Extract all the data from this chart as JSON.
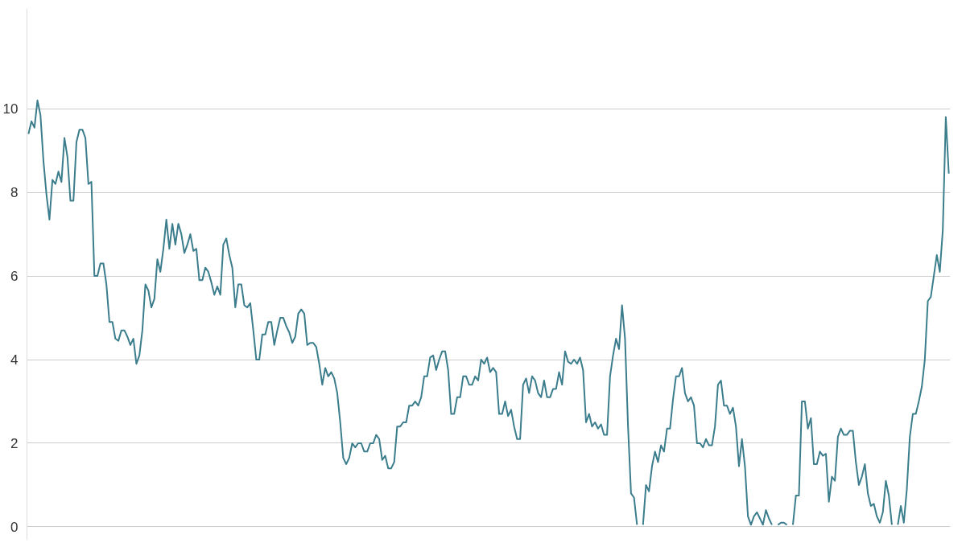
{
  "chart_data": {
    "type": "line",
    "tick_labels": "y",
    "grid": "y",
    "marker": "none",
    "line_style": "solid",
    "categories": [
      null,
      null,
      null,
      null,
      null,
      null,
      null,
      null,
      null,
      null,
      null,
      null,
      null,
      null,
      null,
      null,
      null,
      null,
      null,
      null,
      null,
      null,
      null,
      null,
      null,
      null,
      null,
      null,
      null,
      null,
      null,
      null,
      null,
      null,
      null,
      null,
      null,
      null,
      null,
      null,
      null,
      null,
      null,
      null,
      null,
      null,
      null,
      null,
      null,
      null,
      null,
      null,
      null,
      null,
      null,
      null,
      null,
      null,
      null,
      null,
      null,
      null,
      null,
      null,
      null,
      null,
      null,
      null,
      null,
      null,
      null,
      null,
      null,
      null,
      null,
      null,
      null,
      null,
      null,
      null,
      null,
      null,
      null,
      null,
      null,
      null,
      null,
      null,
      null,
      null,
      null,
      null,
      null,
      null,
      null,
      null,
      null,
      null,
      null,
      null,
      null,
      null,
      null,
      null,
      null,
      null,
      null,
      null,
      null,
      null,
      null,
      null,
      null,
      null,
      null,
      null,
      null,
      null,
      null,
      null,
      null,
      null,
      null,
      null,
      null,
      null,
      null,
      null,
      null,
      null,
      null,
      null,
      null,
      null,
      null,
      null,
      null,
      null,
      null,
      null,
      null,
      null,
      null,
      null,
      null,
      null,
      null,
      null,
      null,
      null,
      null,
      null,
      null,
      null,
      null,
      null,
      null,
      null,
      null,
      null,
      null,
      null,
      null,
      null,
      null,
      null,
      null,
      null,
      null,
      null,
      null,
      null,
      null,
      null,
      null,
      null,
      null,
      null,
      null,
      null,
      null,
      null,
      null,
      null,
      null,
      null,
      null,
      null,
      null,
      null,
      null,
      null,
      null,
      null,
      null,
      null,
      null,
      null,
      null,
      null,
      null,
      null,
      null,
      null,
      null,
      null,
      null,
      null,
      null,
      null,
      null,
      null,
      null,
      null,
      null,
      null,
      null,
      null,
      null,
      null,
      null,
      null,
      null,
      null,
      null,
      null,
      null,
      null,
      null,
      null,
      null,
      null,
      null,
      null,
      null,
      null,
      null,
      null,
      null,
      null,
      null,
      null,
      null,
      null,
      null,
      null,
      null,
      null,
      null,
      null,
      null,
      null,
      null,
      null,
      null,
      null,
      null,
      null,
      null,
      null,
      null,
      null,
      null,
      null,
      null,
      null,
      null,
      null,
      null,
      null,
      null,
      null,
      null,
      null,
      null,
      null,
      null,
      null,
      null,
      null,
      null,
      null,
      null,
      null,
      null,
      null,
      null,
      null,
      null,
      null,
      null,
      null,
      null,
      null,
      null,
      null,
      null,
      null,
      null,
      null,
      null,
      null,
      null,
      null,
      null,
      null,
      null,
      null
    ],
    "ylim": [
      -0.3,
      12.4
    ],
    "yticks": [
      0,
      2,
      4,
      6,
      8,
      10
    ],
    "series": [
      {
        "color": "#3b7d8c",
        "values": [
          9.4,
          9.7,
          9.55,
          10.2,
          9.85,
          8.75,
          7.95,
          7.35,
          8.3,
          8.2,
          8.5,
          8.25,
          9.3,
          8.85,
          7.8,
          7.8,
          9.2,
          9.5,
          9.5,
          9.3,
          8.2,
          8.25,
          6.0,
          6.0,
          6.3,
          6.3,
          5.8,
          4.9,
          4.9,
          4.5,
          4.45,
          4.7,
          4.7,
          4.55,
          4.35,
          4.5,
          3.9,
          4.1,
          4.7,
          5.8,
          5.65,
          5.25,
          5.45,
          6.4,
          6.1,
          6.65,
          7.35,
          6.65,
          7.25,
          6.75,
          7.25,
          7.0,
          6.55,
          6.75,
          7.0,
          6.6,
          6.65,
          5.9,
          5.9,
          6.2,
          6.1,
          5.85,
          5.55,
          5.75,
          5.55,
          6.75,
          6.9,
          6.5,
          6.2,
          5.25,
          5.8,
          5.8,
          5.3,
          5.25,
          5.35,
          4.7,
          4.0,
          4.0,
          4.6,
          4.6,
          4.9,
          4.9,
          4.35,
          4.7,
          5.0,
          5.0,
          4.8,
          4.65,
          4.4,
          4.55,
          5.1,
          5.2,
          5.1,
          4.35,
          4.4,
          4.4,
          4.3,
          3.9,
          3.4,
          3.8,
          3.6,
          3.7,
          3.55,
          3.2,
          2.5,
          1.65,
          1.5,
          1.65,
          2.0,
          1.9,
          2.0,
          2.0,
          1.8,
          1.8,
          2.0,
          2.0,
          2.2,
          2.1,
          1.6,
          1.7,
          1.4,
          1.4,
          1.55,
          2.4,
          2.4,
          2.5,
          2.5,
          2.9,
          2.9,
          3.0,
          2.9,
          3.1,
          3.6,
          3.6,
          4.05,
          4.1,
          3.75,
          4.0,
          4.2,
          4.2,
          3.75,
          2.7,
          2.7,
          3.1,
          3.1,
          3.6,
          3.6,
          3.4,
          3.4,
          3.6,
          3.5,
          4.0,
          3.9,
          4.05,
          3.7,
          3.8,
          3.7,
          2.7,
          2.7,
          3.0,
          2.65,
          2.8,
          2.4,
          2.1,
          2.1,
          3.4,
          3.55,
          3.2,
          3.6,
          3.5,
          3.2,
          3.1,
          3.5,
          3.1,
          3.1,
          3.3,
          3.3,
          3.7,
          3.4,
          4.2,
          3.95,
          3.9,
          4.0,
          3.9,
          4.05,
          3.75,
          2.5,
          2.7,
          2.4,
          2.5,
          2.35,
          2.45,
          2.2,
          2.2,
          3.6,
          4.1,
          4.5,
          4.25,
          5.3,
          4.5,
          2.4,
          0.8,
          0.7,
          0.05,
          null,
          null,
          null,
          null,
          null,
          null,
          null,
          null,
          null,
          null,
          null,
          null,
          null,
          null,
          null,
          null,
          null,
          null,
          null,
          null,
          null,
          null,
          null,
          null,
          null,
          null,
          null,
          null,
          null,
          null,
          null,
          null,
          null,
          null,
          null,
          null,
          null,
          null,
          null,
          null,
          null,
          null,
          null,
          null,
          null,
          null,
          null,
          null,
          null,
          null,
          null,
          null,
          null,
          null,
          null,
          null,
          null,
          null,
          null,
          null,
          null,
          null,
          null,
          null,
          null,
          null,
          null,
          null,
          null,
          null,
          null,
          null,
          null,
          null,
          null,
          null,
          null,
          null,
          null,
          null,
          null,
          null,
          null,
          null,
          null,
          null,
          null,
          null,
          null,
          null,
          null,
          null,
          null,
          null,
          null,
          null,
          null,
          null,
          null,
          null,
          null,
          null,
          null,
          null
        ]
      },
      {
        "color": "#3b7d8d",
        "values": [
          null,
          null,
          null,
          null,
          null,
          null,
          null,
          null,
          null,
          null,
          null,
          null,
          null,
          null,
          null,
          null,
          null,
          null,
          null,
          null,
          null,
          null,
          null,
          null,
          null,
          null,
          null,
          null,
          null,
          null,
          null,
          null,
          null,
          null,
          null,
          null,
          null,
          null,
          null,
          null,
          null,
          null,
          null,
          null,
          null,
          null,
          null,
          null,
          null,
          null,
          null,
          null,
          null,
          null,
          null,
          null,
          null,
          null,
          null,
          null,
          null,
          null,
          null,
          null,
          null,
          null,
          null,
          null,
          null,
          null,
          null,
          null,
          null,
          null,
          null,
          null,
          null,
          null,
          null,
          null,
          null,
          null,
          null,
          null,
          null,
          null,
          null,
          null,
          null,
          null,
          null,
          null,
          null,
          null,
          null,
          null,
          null,
          null,
          null,
          null,
          null,
          null,
          null,
          null,
          null,
          null,
          null,
          null,
          null,
          null,
          null,
          null,
          null,
          null,
          null,
          null,
          null,
          null,
          null,
          null,
          null,
          null,
          null,
          null,
          null,
          null,
          null,
          null,
          null,
          null,
          null,
          null,
          null,
          null,
          null,
          null,
          null,
          null,
          null,
          null,
          null,
          null,
          null,
          null,
          null,
          null,
          null,
          null,
          null,
          null,
          null,
          null,
          null,
          null,
          null,
          null,
          null,
          null,
          null,
          null,
          null,
          null,
          null,
          null,
          null,
          null,
          null,
          null,
          null,
          null,
          null,
          null,
          null,
          null,
          null,
          null,
          null,
          null,
          null,
          null,
          null,
          null,
          null,
          null,
          null,
          null,
          null,
          null,
          null,
          null,
          null,
          null,
          null,
          null,
          null,
          null,
          null,
          null,
          null,
          null,
          null,
          null,
          null,
          null,
          null,
          0.05,
          1.0,
          0.85,
          1.45,
          1.8,
          1.55,
          1.95,
          1.8,
          2.35,
          2.35,
          3.05,
          3.6,
          3.6,
          3.8,
          3.2,
          3.0,
          3.1,
          2.9,
          2.0,
          2.0,
          1.9,
          2.1,
          1.95,
          1.95,
          2.4,
          3.4,
          3.5,
          2.9,
          2.9,
          2.7,
          2.85,
          2.4,
          1.45,
          2.1,
          1.45,
          0.25,
          0.05,
          0.25,
          0.35,
          0.2,
          0.05,
          0.4,
          0.2,
          0.05,
          null,
          null,
          null,
          null,
          null,
          null,
          null,
          null,
          null,
          null,
          null,
          null,
          null,
          null,
          null,
          null,
          null,
          null,
          null,
          null,
          null,
          null,
          null,
          null,
          null,
          null,
          null,
          null,
          null,
          null,
          null,
          null,
          null,
          null,
          null,
          null,
          null,
          null,
          null,
          null,
          null,
          null,
          null,
          null,
          null,
          null,
          null,
          null,
          null,
          null,
          null,
          null,
          null,
          null,
          null,
          null,
          null,
          null,
          null
        ]
      },
      {
        "color": "#3b7d8e",
        "values": [
          null,
          null,
          null,
          null,
          null,
          null,
          null,
          null,
          null,
          null,
          null,
          null,
          null,
          null,
          null,
          null,
          null,
          null,
          null,
          null,
          null,
          null,
          null,
          null,
          null,
          null,
          null,
          null,
          null,
          null,
          null,
          null,
          null,
          null,
          null,
          null,
          null,
          null,
          null,
          null,
          null,
          null,
          null,
          null,
          null,
          null,
          null,
          null,
          null,
          null,
          null,
          null,
          null,
          null,
          null,
          null,
          null,
          null,
          null,
          null,
          null,
          null,
          null,
          null,
          null,
          null,
          null,
          null,
          null,
          null,
          null,
          null,
          null,
          null,
          null,
          null,
          null,
          null,
          null,
          null,
          null,
          null,
          null,
          null,
          null,
          null,
          null,
          null,
          null,
          null,
          null,
          null,
          null,
          null,
          null,
          null,
          null,
          null,
          null,
          null,
          null,
          null,
          null,
          null,
          null,
          null,
          null,
          null,
          null,
          null,
          null,
          null,
          null,
          null,
          null,
          null,
          null,
          null,
          null,
          null,
          null,
          null,
          null,
          null,
          null,
          null,
          null,
          null,
          null,
          null,
          null,
          null,
          null,
          null,
          null,
          null,
          null,
          null,
          null,
          null,
          null,
          null,
          null,
          null,
          null,
          null,
          null,
          null,
          null,
          null,
          null,
          null,
          null,
          null,
          null,
          null,
          null,
          null,
          null,
          null,
          null,
          null,
          null,
          null,
          null,
          null,
          null,
          null,
          null,
          null,
          null,
          null,
          null,
          null,
          null,
          null,
          null,
          null,
          null,
          null,
          null,
          null,
          null,
          null,
          null,
          null,
          null,
          null,
          null,
          null,
          null,
          null,
          null,
          null,
          null,
          null,
          null,
          null,
          null,
          null,
          null,
          null,
          null,
          null,
          null,
          null,
          null,
          null,
          null,
          null,
          null,
          null,
          null,
          null,
          null,
          null,
          null,
          null,
          null,
          null,
          null,
          null,
          null,
          null,
          null,
          null,
          null,
          null,
          null,
          null,
          null,
          null,
          null,
          null,
          null,
          null,
          null,
          null,
          null,
          null,
          null,
          null,
          null,
          null,
          null,
          null,
          null,
          null,
          null,
          null,
          0.05,
          0.1,
          0.1,
          0.05,
          null,
          null,
          null,
          null,
          null,
          null,
          null,
          null,
          null,
          null,
          null,
          null,
          null,
          null,
          null,
          null,
          null,
          null,
          null,
          null,
          null,
          null,
          null,
          null,
          null,
          null,
          null,
          null,
          null,
          null,
          null,
          null,
          null,
          null,
          null,
          null,
          null,
          null,
          null,
          null,
          null,
          null,
          null,
          null,
          null,
          null,
          null,
          null,
          null,
          null,
          null,
          null,
          null,
          null
        ]
      },
      {
        "color": "#3c7d8c",
        "values": [
          null,
          null,
          null,
          null,
          null,
          null,
          null,
          null,
          null,
          null,
          null,
          null,
          null,
          null,
          null,
          null,
          null,
          null,
          null,
          null,
          null,
          null,
          null,
          null,
          null,
          null,
          null,
          null,
          null,
          null,
          null,
          null,
          null,
          null,
          null,
          null,
          null,
          null,
          null,
          null,
          null,
          null,
          null,
          null,
          null,
          null,
          null,
          null,
          null,
          null,
          null,
          null,
          null,
          null,
          null,
          null,
          null,
          null,
          null,
          null,
          null,
          null,
          null,
          null,
          null,
          null,
          null,
          null,
          null,
          null,
          null,
          null,
          null,
          null,
          null,
          null,
          null,
          null,
          null,
          null,
          null,
          null,
          null,
          null,
          null,
          null,
          null,
          null,
          null,
          null,
          null,
          null,
          null,
          null,
          null,
          null,
          null,
          null,
          null,
          null,
          null,
          null,
          null,
          null,
          null,
          null,
          null,
          null,
          null,
          null,
          null,
          null,
          null,
          null,
          null,
          null,
          null,
          null,
          null,
          null,
          null,
          null,
          null,
          null,
          null,
          null,
          null,
          null,
          null,
          null,
          null,
          null,
          null,
          null,
          null,
          null,
          null,
          null,
          null,
          null,
          null,
          null,
          null,
          null,
          null,
          null,
          null,
          null,
          null,
          null,
          null,
          null,
          null,
          null,
          null,
          null,
          null,
          null,
          null,
          null,
          null,
          null,
          null,
          null,
          null,
          null,
          null,
          null,
          null,
          null,
          null,
          null,
          null,
          null,
          null,
          null,
          null,
          null,
          null,
          null,
          null,
          null,
          null,
          null,
          null,
          null,
          null,
          null,
          null,
          null,
          null,
          null,
          null,
          null,
          null,
          null,
          null,
          null,
          null,
          null,
          null,
          null,
          null,
          null,
          null,
          null,
          null,
          null,
          null,
          null,
          null,
          null,
          null,
          null,
          null,
          null,
          null,
          null,
          null,
          null,
          null,
          null,
          null,
          null,
          null,
          null,
          null,
          null,
          null,
          null,
          null,
          null,
          null,
          null,
          null,
          null,
          null,
          null,
          null,
          null,
          null,
          null,
          null,
          null,
          null,
          null,
          null,
          null,
          null,
          null,
          null,
          null,
          null,
          null,
          null,
          0.05,
          0.75,
          0.75,
          3.0,
          3.0,
          2.35,
          2.6,
          1.5,
          1.5,
          1.8,
          1.7,
          1.75,
          0.6,
          1.2,
          1.1,
          2.15,
          2.35,
          2.2,
          2.2,
          2.3,
          2.3,
          1.55,
          1.0,
          1.2,
          1.5,
          0.8,
          0.5,
          0.55,
          0.25,
          0.1,
          0.35,
          1.1,
          0.75,
          0.05,
          null,
          null,
          null,
          null,
          null,
          null,
          null,
          null,
          null,
          null,
          null,
          null,
          null,
          null,
          null,
          null,
          null,
          null,
          null
        ]
      },
      {
        "color": "#3b7e8c",
        "values": [
          null,
          null,
          null,
          null,
          null,
          null,
          null,
          null,
          null,
          null,
          null,
          null,
          null,
          null,
          null,
          null,
          null,
          null,
          null,
          null,
          null,
          null,
          null,
          null,
          null,
          null,
          null,
          null,
          null,
          null,
          null,
          null,
          null,
          null,
          null,
          null,
          null,
          null,
          null,
          null,
          null,
          null,
          null,
          null,
          null,
          null,
          null,
          null,
          null,
          null,
          null,
          null,
          null,
          null,
          null,
          null,
          null,
          null,
          null,
          null,
          null,
          null,
          null,
          null,
          null,
          null,
          null,
          null,
          null,
          null,
          null,
          null,
          null,
          null,
          null,
          null,
          null,
          null,
          null,
          null,
          null,
          null,
          null,
          null,
          null,
          null,
          null,
          null,
          null,
          null,
          null,
          null,
          null,
          null,
          null,
          null,
          null,
          null,
          null,
          null,
          null,
          null,
          null,
          null,
          null,
          null,
          null,
          null,
          null,
          null,
          null,
          null,
          null,
          null,
          null,
          null,
          null,
          null,
          null,
          null,
          null,
          null,
          null,
          null,
          null,
          null,
          null,
          null,
          null,
          null,
          null,
          null,
          null,
          null,
          null,
          null,
          null,
          null,
          null,
          null,
          null,
          null,
          null,
          null,
          null,
          null,
          null,
          null,
          null,
          null,
          null,
          null,
          null,
          null,
          null,
          null,
          null,
          null,
          null,
          null,
          null,
          null,
          null,
          null,
          null,
          null,
          null,
          null,
          null,
          null,
          null,
          null,
          null,
          null,
          null,
          null,
          null,
          null,
          null,
          null,
          null,
          null,
          null,
          null,
          null,
          null,
          null,
          null,
          null,
          null,
          null,
          null,
          null,
          null,
          null,
          null,
          null,
          null,
          null,
          null,
          null,
          null,
          null,
          null,
          null,
          null,
          null,
          null,
          null,
          null,
          null,
          null,
          null,
          null,
          null,
          null,
          null,
          null,
          null,
          null,
          null,
          null,
          null,
          null,
          null,
          null,
          null,
          null,
          null,
          null,
          null,
          null,
          null,
          null,
          null,
          null,
          null,
          null,
          null,
          null,
          null,
          null,
          null,
          null,
          null,
          null,
          null,
          null,
          null,
          null,
          null,
          null,
          null,
          null,
          null,
          null,
          null,
          null,
          null,
          null,
          null,
          null,
          null,
          null,
          null,
          null,
          null,
          null,
          null,
          null,
          null,
          null,
          null,
          null,
          null,
          null,
          null,
          null,
          null,
          null,
          null,
          null,
          null,
          null,
          null,
          null,
          null,
          null,
          null,
          null,
          0.05,
          0.5,
          0.1,
          0.9,
          2.15,
          2.7,
          2.7,
          3.0,
          3.35,
          4.0,
          5.4,
          5.5,
          6.0,
          6.5,
          6.1,
          7.1,
          9.8,
          8.45
        ]
      }
    ]
  }
}
